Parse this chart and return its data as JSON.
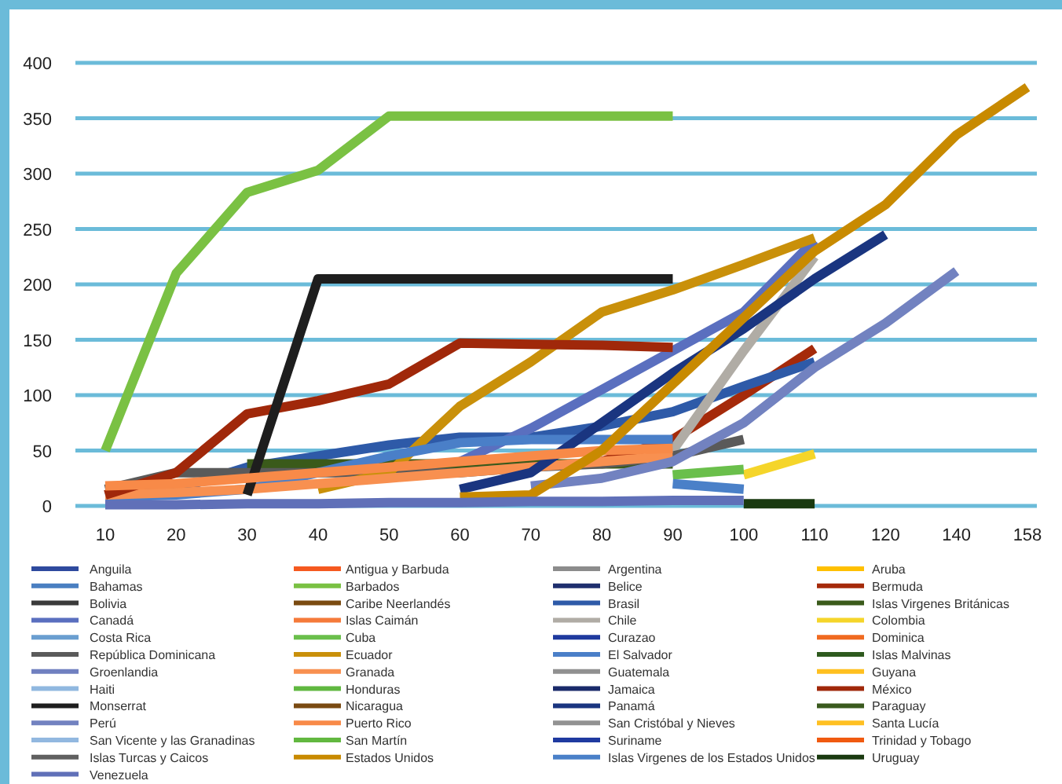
{
  "chart_data": {
    "type": "line",
    "categories": [
      "10",
      "20",
      "30",
      "40",
      "50",
      "60",
      "70",
      "80",
      "90",
      "100",
      "110",
      "120",
      "140",
      "158"
    ],
    "ylim": [
      0,
      400
    ],
    "yticks": [
      0,
      50,
      100,
      150,
      200,
      250,
      300,
      350,
      400
    ],
    "grid": "y",
    "legend": "bottom",
    "line_style": "solid",
    "marker": "none",
    "series": [
      {
        "name": "Anguila",
        "color": "#2e4a9e",
        "values": [
          null,
          null,
          null,
          null,
          null,
          null,
          null,
          null,
          null,
          null,
          null,
          null,
          null,
          null
        ]
      },
      {
        "name": "Antigua y Barbuda",
        "color": "#f5591f",
        "values": [
          null,
          null,
          null,
          null,
          null,
          null,
          null,
          null,
          null,
          null,
          null,
          null,
          null,
          null
        ]
      },
      {
        "name": "Argentina",
        "color": "#8c8c8c",
        "values": [
          null,
          null,
          null,
          null,
          null,
          null,
          null,
          null,
          null,
          null,
          null,
          null,
          null,
          null
        ]
      },
      {
        "name": "Aruba",
        "color": "#ffc000",
        "values": [
          null,
          null,
          null,
          null,
          null,
          null,
          null,
          null,
          null,
          null,
          null,
          null,
          null,
          null
        ]
      },
      {
        "name": "Bahamas",
        "color": "#4a7fc1",
        "values": [
          null,
          null,
          null,
          null,
          null,
          null,
          null,
          null,
          null,
          null,
          null,
          null,
          null,
          null
        ]
      },
      {
        "name": "Barbados",
        "color": "#7ac143",
        "values": [
          50,
          210,
          283,
          303,
          352,
          352,
          352,
          352,
          352,
          null,
          null,
          null,
          null,
          null
        ]
      },
      {
        "name": "Belice",
        "color": "#1f2f6e",
        "values": [
          null,
          null,
          null,
          null,
          null,
          null,
          null,
          null,
          null,
          null,
          null,
          null,
          null,
          null
        ]
      },
      {
        "name": "Bermuda",
        "color": "#a52a0a",
        "values": [
          null,
          null,
          null,
          null,
          null,
          null,
          null,
          40,
          60,
          100,
          142,
          null,
          null,
          null
        ]
      },
      {
        "name": "Bolivia",
        "color": "#3a3a3a",
        "values": [
          null,
          null,
          null,
          null,
          null,
          null,
          null,
          null,
          null,
          null,
          null,
          null,
          null,
          null
        ]
      },
      {
        "name": "Caribe Neerlandés",
        "color": "#7a4a10",
        "values": [
          null,
          null,
          null,
          null,
          null,
          null,
          null,
          null,
          null,
          null,
          null,
          null,
          null,
          null
        ]
      },
      {
        "name": "Brasil",
        "color": "#2e5aa8",
        "values": [
          10,
          15,
          35,
          45,
          55,
          62,
          62,
          72,
          85,
          108,
          130,
          null,
          null,
          null
        ]
      },
      {
        "name": "Islas Virgenes Británicas",
        "color": "#3a5a1a",
        "values": [
          null,
          null,
          38,
          38,
          38,
          38,
          38,
          38,
          38,
          null,
          null,
          null,
          null,
          null
        ]
      },
      {
        "name": "Canadá",
        "color": "#5a6fbf",
        "values": [
          null,
          null,
          null,
          null,
          null,
          40,
          70,
          105,
          140,
          175,
          240,
          null,
          null,
          null
        ]
      },
      {
        "name": "Islas Caimán",
        "color": "#f57a3a",
        "values": [
          null,
          null,
          null,
          null,
          null,
          null,
          null,
          null,
          null,
          null,
          null,
          null,
          null,
          null
        ]
      },
      {
        "name": "Chile",
        "color": "#b0aca5",
        "values": [
          null,
          null,
          null,
          null,
          null,
          null,
          null,
          null,
          50,
          140,
          225,
          null,
          null,
          null
        ]
      },
      {
        "name": "Colombia",
        "color": "#f5d52a",
        "values": [
          null,
          null,
          null,
          null,
          null,
          null,
          null,
          null,
          null,
          28,
          47,
          null,
          null,
          null
        ]
      },
      {
        "name": "Costa Rica",
        "color": "#6a9ed0",
        "values": [
          null,
          null,
          null,
          null,
          null,
          null,
          null,
          null,
          null,
          null,
          null,
          null,
          null,
          null
        ]
      },
      {
        "name": "Cuba",
        "color": "#6abf4b",
        "values": [
          null,
          null,
          null,
          null,
          null,
          null,
          null,
          null,
          28,
          33,
          null,
          null,
          null,
          null
        ]
      },
      {
        "name": "Curazao",
        "color": "#1f3a9e",
        "values": [
          null,
          null,
          null,
          null,
          null,
          null,
          null,
          null,
          null,
          null,
          null,
          null,
          null,
          null
        ]
      },
      {
        "name": "Dominica",
        "color": "#f06a20",
        "values": [
          null,
          null,
          null,
          null,
          null,
          null,
          null,
          null,
          null,
          null,
          null,
          null,
          null,
          null
        ]
      },
      {
        "name": "República Dominicana",
        "color": "#5a5a5a",
        "values": [
          15,
          30,
          30,
          30,
          30,
          30,
          35,
          38,
          45,
          60,
          null,
          null,
          null,
          null
        ]
      },
      {
        "name": "Ecuador",
        "color": "#c9900a",
        "values": [
          null,
          null,
          null,
          15,
          30,
          90,
          130,
          175,
          195,
          218,
          242,
          null,
          null,
          null
        ]
      },
      {
        "name": "El Salvador",
        "color": "#4a7fc8",
        "values": [
          8,
          10,
          15,
          30,
          45,
          57,
          60,
          60,
          60,
          null,
          null,
          null,
          null,
          null
        ]
      },
      {
        "name": "Islas Malvinas",
        "color": "#2e5a1e",
        "values": [
          null,
          null,
          null,
          null,
          null,
          null,
          null,
          null,
          null,
          null,
          null,
          null,
          null,
          null
        ]
      },
      {
        "name": "Groenlandia",
        "color": "#7080c0",
        "values": [
          null,
          null,
          null,
          null,
          null,
          null,
          null,
          null,
          null,
          null,
          null,
          null,
          null,
          null
        ]
      },
      {
        "name": "Granada",
        "color": "#f89050",
        "values": [
          10,
          12,
          15,
          20,
          25,
          30,
          35,
          40,
          45,
          null,
          null,
          null,
          null,
          null
        ]
      },
      {
        "name": "Guatemala",
        "color": "#909090",
        "values": [
          null,
          null,
          null,
          null,
          null,
          null,
          null,
          null,
          null,
          null,
          null,
          null,
          null,
          null
        ]
      },
      {
        "name": "Guyana",
        "color": "#ffc020",
        "values": [
          null,
          null,
          null,
          null,
          null,
          null,
          null,
          null,
          null,
          null,
          null,
          null,
          null,
          null
        ]
      },
      {
        "name": "Haiti",
        "color": "#90b8e0",
        "values": [
          null,
          null,
          null,
          null,
          null,
          null,
          null,
          null,
          null,
          null,
          null,
          null,
          null,
          null
        ]
      },
      {
        "name": "Honduras",
        "color": "#60b840",
        "values": [
          null,
          null,
          null,
          null,
          null,
          null,
          null,
          null,
          null,
          null,
          null,
          null,
          null,
          null
        ]
      },
      {
        "name": "Jamaica",
        "color": "#1a2a6a",
        "values": [
          null,
          null,
          null,
          null,
          null,
          null,
          null,
          null,
          null,
          null,
          null,
          null,
          null,
          null
        ]
      },
      {
        "name": "México",
        "color": "#a0280a",
        "values": [
          10,
          30,
          83,
          95,
          110,
          147,
          146,
          145,
          143,
          null,
          null,
          null,
          null,
          null
        ]
      },
      {
        "name": "Monserrat",
        "color": "#1e1e1e",
        "values": [
          null,
          null,
          10,
          205,
          205,
          205,
          205,
          205,
          205,
          null,
          null,
          null,
          null,
          null
        ]
      },
      {
        "name": "Nicaragua",
        "color": "#7a4a12",
        "values": [
          null,
          null,
          null,
          null,
          null,
          null,
          null,
          null,
          null,
          null,
          null,
          null,
          null,
          null
        ]
      },
      {
        "name": "Panamá",
        "color": "#1a3580",
        "values": [
          null,
          null,
          null,
          null,
          null,
          15,
          30,
          75,
          120,
          160,
          205,
          245,
          null,
          null
        ]
      },
      {
        "name": "Paraguay",
        "color": "#3a5a1e",
        "values": [
          null,
          null,
          null,
          null,
          null,
          null,
          null,
          null,
          null,
          null,
          null,
          null,
          null,
          null
        ]
      },
      {
        "name": "Perú",
        "color": "#7282c0",
        "values": [
          null,
          null,
          null,
          null,
          null,
          null,
          18,
          25,
          40,
          75,
          125,
          165,
          212,
          null
        ]
      },
      {
        "name": "Puerto Rico",
        "color": "#f88a48",
        "values": [
          18,
          20,
          25,
          30,
          35,
          40,
          45,
          50,
          52,
          null,
          null,
          null,
          null,
          null
        ]
      },
      {
        "name": "San Cristóbal y Nieves",
        "color": "#929292",
        "values": [
          null,
          null,
          null,
          null,
          null,
          null,
          null,
          null,
          null,
          null,
          null,
          null,
          null,
          null
        ]
      },
      {
        "name": "Santa Lucía",
        "color": "#ffc022",
        "values": [
          null,
          null,
          null,
          null,
          null,
          null,
          null,
          null,
          null,
          null,
          null,
          null,
          null,
          null
        ]
      },
      {
        "name": "San Vicente y las Granadinas",
        "color": "#92b8e0",
        "values": [
          null,
          null,
          null,
          null,
          null,
          null,
          null,
          null,
          null,
          null,
          null,
          null,
          null,
          null
        ]
      },
      {
        "name": "San Martín",
        "color": "#62b840",
        "values": [
          null,
          null,
          null,
          null,
          null,
          null,
          null,
          null,
          null,
          null,
          null,
          null,
          null,
          null
        ]
      },
      {
        "name": "Suriname",
        "color": "#1f3aa0",
        "values": [
          null,
          null,
          null,
          null,
          null,
          null,
          null,
          null,
          null,
          null,
          null,
          null,
          null,
          null
        ]
      },
      {
        "name": "Trinidad y Tobago",
        "color": "#f05a10",
        "values": [
          null,
          null,
          null,
          null,
          null,
          null,
          null,
          null,
          null,
          null,
          null,
          null,
          null,
          null
        ]
      },
      {
        "name": "Islas Turcas y Caicos",
        "color": "#606060",
        "values": [
          null,
          null,
          null,
          null,
          null,
          null,
          null,
          null,
          null,
          null,
          null,
          null,
          null,
          null
        ]
      },
      {
        "name": "Estados Unidos",
        "color": "#c88a00",
        "values": [
          null,
          null,
          null,
          null,
          null,
          8,
          10,
          50,
          110,
          170,
          230,
          272,
          335,
          378
        ]
      },
      {
        "name": "Islas Virgenes de los Estados Unidos",
        "color": "#4a80c8",
        "values": [
          null,
          null,
          null,
          null,
          null,
          null,
          null,
          null,
          20,
          15,
          null,
          null,
          null,
          null
        ]
      },
      {
        "name": "Uruguay",
        "color": "#1a3a10",
        "values": [
          null,
          null,
          null,
          null,
          null,
          null,
          null,
          null,
          null,
          2,
          2,
          null,
          null,
          null
        ]
      },
      {
        "name": "Venezuela",
        "color": "#6070b8",
        "values": [
          1,
          1,
          2,
          2,
          3,
          3,
          4,
          4,
          5,
          5,
          null,
          null,
          null,
          null
        ]
      }
    ]
  }
}
